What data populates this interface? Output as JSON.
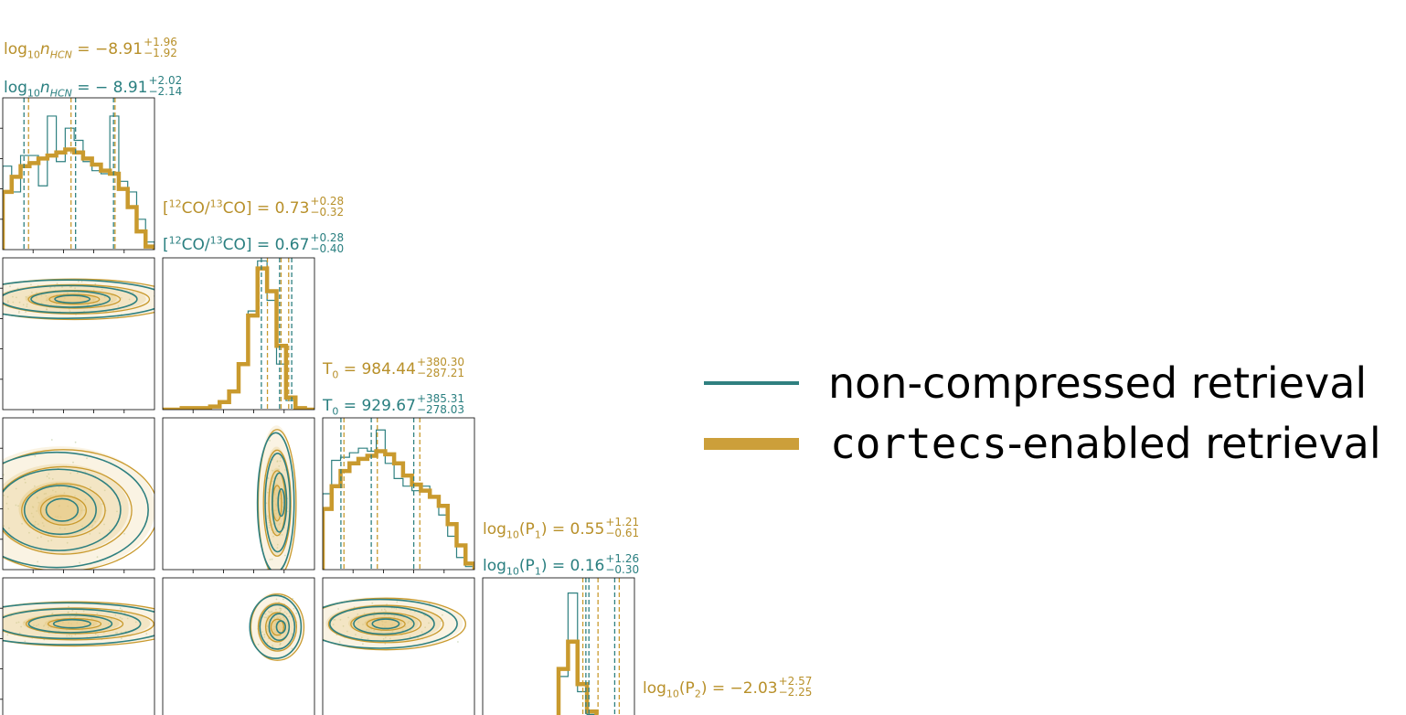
{
  "colors": {
    "teal": "#2f8080",
    "gold": "#c99a2e",
    "gold_text": "#b8902a",
    "teal_text": "#2a7f80"
  },
  "legend": {
    "entries": [
      {
        "code": "",
        "text": "non-compressed retrieval",
        "color": "#2f8080",
        "style": "thin"
      },
      {
        "code": "cortecs",
        "text": "-enabled retrieval",
        "color": "#cc9f3a",
        "style": "thick"
      }
    ]
  },
  "chart_data": {
    "type": "corner",
    "parameters": [
      {
        "key": "hcn",
        "gold": {
          "base": "log",
          "sub": "10",
          "name": "n",
          "name_sub": "HCN",
          "eq": " = ",
          "val": "−8.91",
          "plus": "+1.96",
          "minus": "−1.92"
        },
        "teal": {
          "base": "log",
          "sub": "10",
          "name": "n",
          "name_sub": "HCN",
          "eq": " = ",
          "val": "− 8.91",
          "plus": "+2.02",
          "minus": "−2.14"
        }
      },
      {
        "key": "co_ratio",
        "gold": {
          "pre": "[",
          "s1": "12",
          "m1": "CO/",
          "s2": "13",
          "m2": "CO] = ",
          "val": "0.73",
          "plus": "+0.28",
          "minus": "−0.32"
        },
        "teal": {
          "pre": "[",
          "s1": "12",
          "m1": "CO/",
          "s2": "13",
          "m2": "CO] = ",
          "val": "0.67",
          "plus": "+0.28",
          "minus": "−0.40"
        }
      },
      {
        "key": "t0",
        "gold": {
          "name": "T",
          "name_sub": "0",
          "eq": " = ",
          "val": "984.44",
          "plus": "+380.30",
          "minus": "−287.21"
        },
        "teal": {
          "name": "T",
          "name_sub": "0",
          "eq": " = ",
          "val": "929.67",
          "plus": "+385.31",
          "minus": "−278.03"
        }
      },
      {
        "key": "p1",
        "gold": {
          "base": "log",
          "sub": "10",
          "name": "(P",
          "name_sub": "1",
          "eq": ") = ",
          "val": "0.55",
          "plus": "+1.21",
          "minus": "−0.61"
        },
        "teal": {
          "base": "log",
          "sub": "10",
          "name": "(P",
          "name_sub": "1",
          "eq": ") = ",
          "val": "0.16",
          "plus": "+1.26",
          "minus": "−0.30"
        }
      },
      {
        "key": "p2",
        "gold": {
          "base": "log",
          "sub": "10",
          "name": "(P",
          "name_sub": "2",
          "eq": ") = ",
          "val": "−2.03",
          "plus": "+2.57",
          "minus": "−2.25"
        }
      }
    ],
    "histograms": [
      {
        "param": "hcn",
        "teal": [
          0.55,
          0.38,
          0.62,
          0.62,
          0.42,
          0.88,
          0.58,
          0.8,
          0.72,
          0.58,
          0.52,
          0.5,
          0.88,
          0.45,
          0.38,
          0.2,
          0.05
        ],
        "gold": [
          0.38,
          0.48,
          0.55,
          0.57,
          0.6,
          0.62,
          0.64,
          0.66,
          0.64,
          0.6,
          0.56,
          0.52,
          0.5,
          0.4,
          0.28,
          0.12,
          0.02
        ],
        "teal_lines": [
          0.14,
          0.48,
          0.73
        ],
        "gold_lines": [
          0.17,
          0.45,
          0.74
        ]
      },
      {
        "param": "co_ratio",
        "teal": [
          0,
          0,
          0,
          0,
          0.01,
          0.02,
          0.05,
          0.12,
          0.3,
          0.65,
          0.98,
          0.72,
          0.3,
          0.06,
          0.01,
          0
        ],
        "gold": [
          0,
          0,
          0.01,
          0.01,
          0.01,
          0.02,
          0.05,
          0.12,
          0.3,
          0.62,
          0.93,
          0.78,
          0.42,
          0.08,
          0.01,
          0
        ],
        "teal_lines": [
          0.65,
          0.77,
          0.85
        ],
        "gold_lines": [
          0.69,
          0.78,
          0.83
        ]
      },
      {
        "param": "t0",
        "teal": [
          0.5,
          0.72,
          0.74,
          0.77,
          0.8,
          0.78,
          0.92,
          0.7,
          0.6,
          0.55,
          0.52,
          0.55,
          0.48,
          0.36,
          0.22,
          0.08,
          0.02
        ],
        "gold": [
          0.4,
          0.55,
          0.65,
          0.7,
          0.73,
          0.75,
          0.78,
          0.76,
          0.7,
          0.62,
          0.56,
          0.52,
          0.48,
          0.42,
          0.3,
          0.16,
          0.04
        ],
        "teal_lines": [
          0.12,
          0.32,
          0.6
        ],
        "gold_lines": [
          0.14,
          0.36,
          0.64
        ]
      },
      {
        "param": "p1",
        "teal": [
          0,
          0,
          0,
          0,
          0,
          0,
          0,
          0,
          0.35,
          0.9,
          0.25,
          0.1,
          0.04,
          0.02,
          0.02,
          0.01
        ],
        "gold": [
          0,
          0,
          0,
          0,
          0,
          0,
          0,
          0,
          0.4,
          0.58,
          0.3,
          0.12,
          0.06,
          0.04,
          0.05,
          0.02
        ],
        "teal_lines": [
          0.68,
          0.7,
          0.87
        ],
        "gold_lines": [
          0.66,
          0.76,
          0.9
        ]
      }
    ],
    "density_panels": [
      {
        "x": "hcn",
        "y": "co_ratio"
      },
      {
        "x": "hcn",
        "y": "t0"
      },
      {
        "x": "co_ratio",
        "y": "t0"
      },
      {
        "x": "hcn",
        "y": "p1"
      },
      {
        "x": "co_ratio",
        "y": "p1"
      },
      {
        "x": "t0",
        "y": "p1"
      }
    ]
  }
}
